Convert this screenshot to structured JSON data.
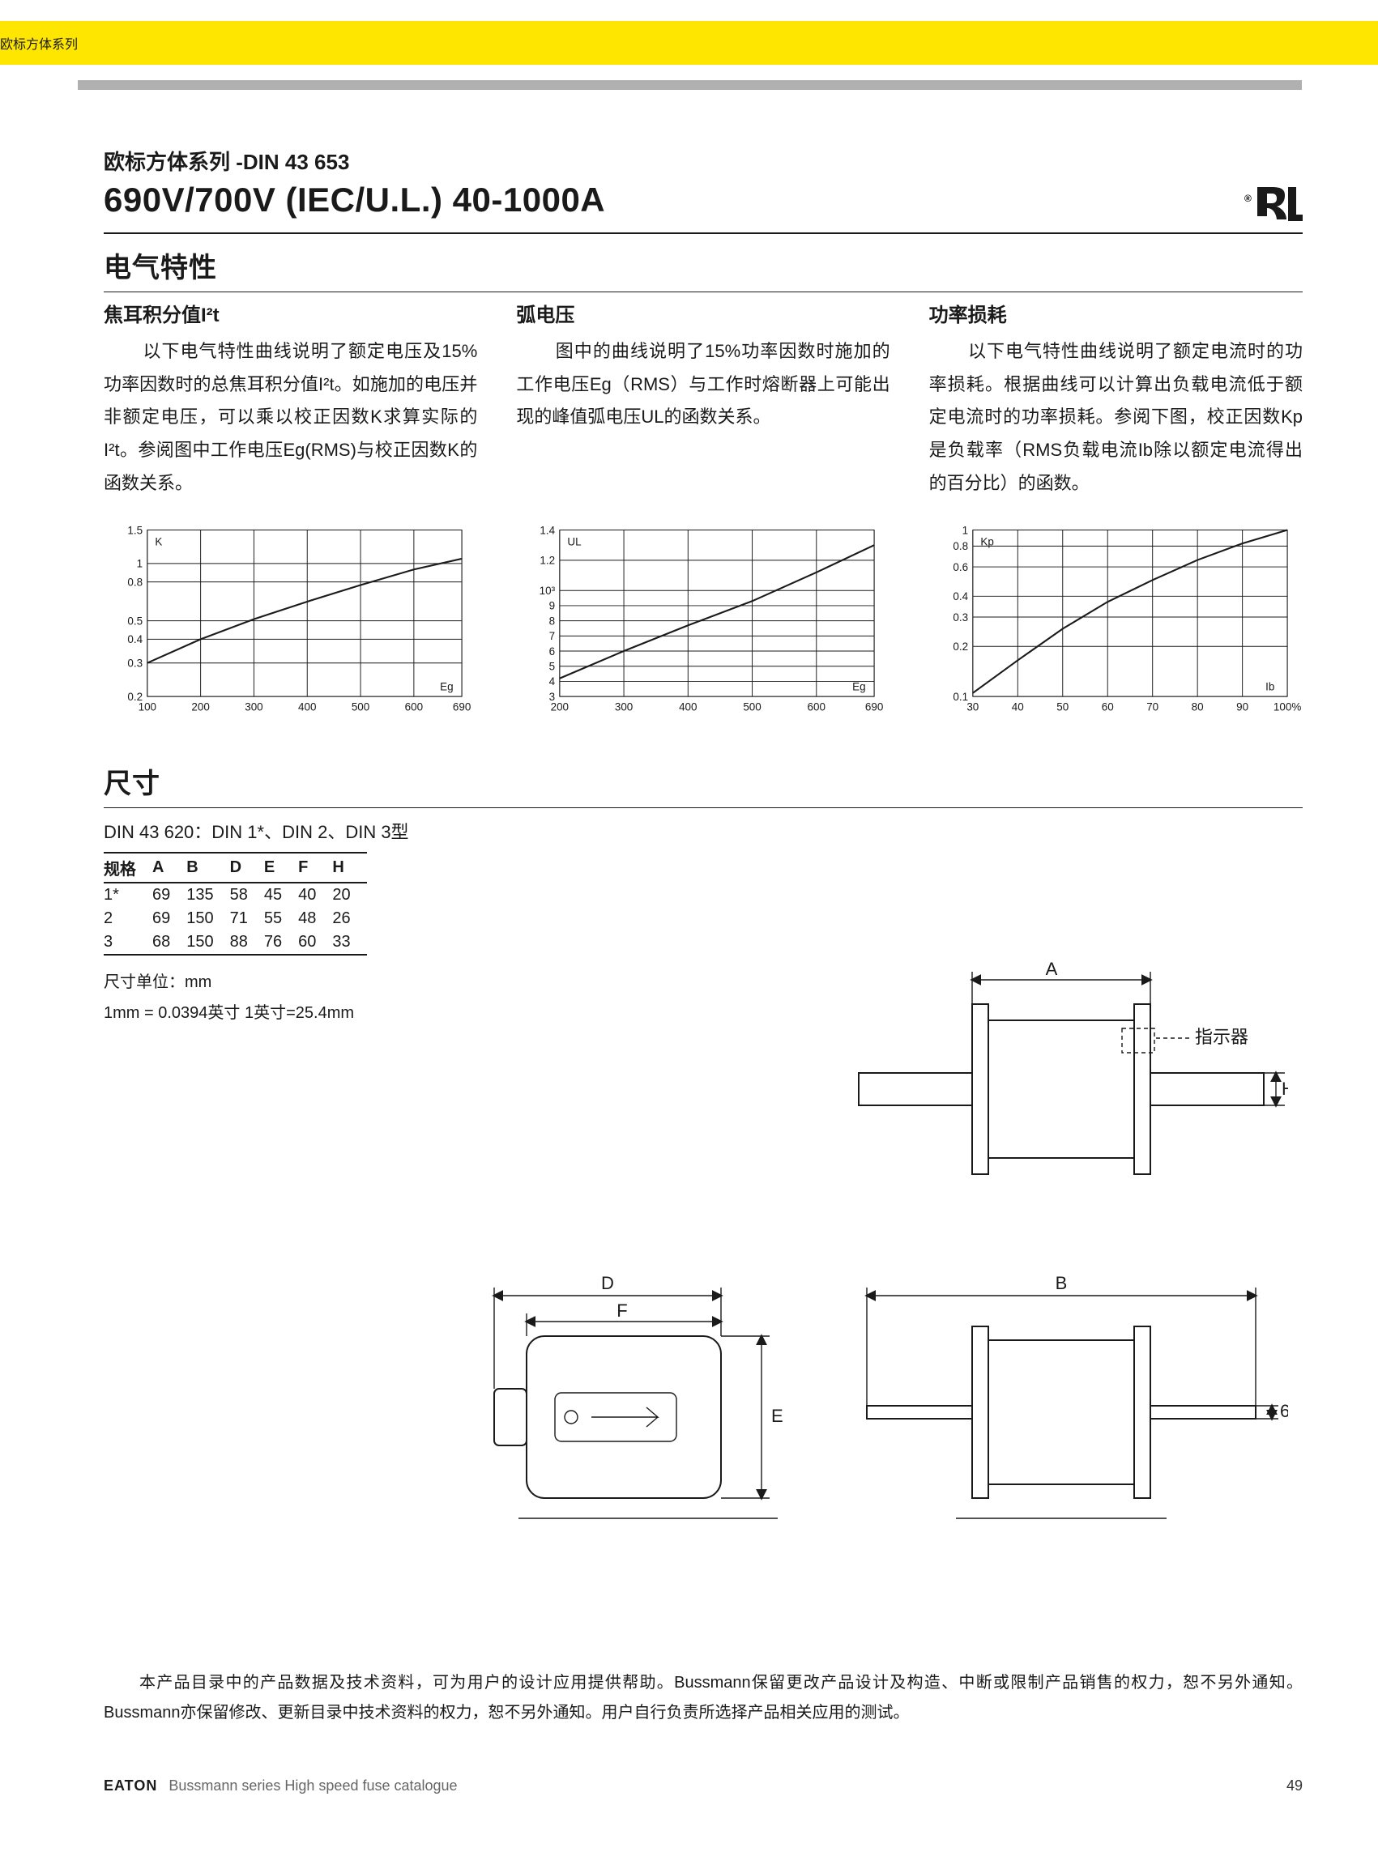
{
  "header": {
    "yellow_bar_label": "欧标方体系列"
  },
  "heading": {
    "subtitle": "欧标方体系列 -DIN 43 653",
    "title": "690V/700V (IEC/U.L.)   40-1000A"
  },
  "section_electrical_title": "电气特性",
  "cols": {
    "i2t": {
      "heading": "焦耳积分值I²t",
      "body": "以下电气特性曲线说明了额定电压及15%功率因数时的总焦耳积分值I²t。如施加的电压并非额定电压，可以乘以校正因数K求算实际的I²t。参阅图中工作电压Eg(RMS)与校正因数K的函数关系。"
    },
    "arc": {
      "heading": "弧电压",
      "body": "图中的曲线说明了15%功率因数时施加的工作电压Eg（RMS）与工作时熔断器上可能出现的峰值弧电压UL的函数关系。"
    },
    "power": {
      "heading": "功率损耗",
      "body": "以下电气特性曲线说明了额定电流时的功率损耗。根据曲线可以计算出负载电流低于额定电流时的功率损耗。参阅下图，校正因数Kp是负载率（RMS负载电流Ib除以额定电流得出的百分比）的函数。"
    }
  },
  "charts": {
    "common": {
      "grid_color": "#1a1a1a",
      "curve_color": "#1a1a1a",
      "background_color": "#ffffff",
      "tick_fontsize": 14
    },
    "k": {
      "type": "line",
      "yscale": "log",
      "xlim": [
        100,
        690
      ],
      "ylim": [
        0.2,
        1.5
      ],
      "xticks": [
        100,
        200,
        300,
        400,
        500,
        600,
        690
      ],
      "yticks": [
        0.2,
        0.3,
        0.4,
        0.5,
        0.8,
        1.0,
        1.5
      ],
      "ylabel_inside": "K",
      "xlabel_inside": "Eg",
      "curve": [
        {
          "x": 100,
          "y": 0.3
        },
        {
          "x": 200,
          "y": 0.4
        },
        {
          "x": 300,
          "y": 0.51
        },
        {
          "x": 400,
          "y": 0.63
        },
        {
          "x": 500,
          "y": 0.77
        },
        {
          "x": 600,
          "y": 0.93
        },
        {
          "x": 690,
          "y": 1.06
        }
      ]
    },
    "ul": {
      "type": "line",
      "yscale": "linear",
      "xlim": [
        200,
        690
      ],
      "ylim": [
        3,
        14
      ],
      "xticks": [
        200,
        300,
        400,
        500,
        600,
        690
      ],
      "yticks": [
        3,
        4,
        5,
        6,
        7,
        8,
        9,
        10,
        12,
        14
      ],
      "ytick_labels": [
        "3",
        "4",
        "5",
        "6",
        "7",
        "8",
        "9",
        "10³",
        "1.2",
        "1.4"
      ],
      "ylabel_inside": "UL",
      "xlabel_inside": "Eg",
      "curve": [
        {
          "x": 200,
          "y": 4.2
        },
        {
          "x": 300,
          "y": 6.0
        },
        {
          "x": 400,
          "y": 7.7
        },
        {
          "x": 500,
          "y": 9.3
        },
        {
          "x": 600,
          "y": 11.2
        },
        {
          "x": 690,
          "y": 13.0
        }
      ]
    },
    "kp": {
      "type": "line",
      "yscale": "log",
      "xlim": [
        30,
        100
      ],
      "ylim": [
        0.1,
        1.0
      ],
      "xticks": [
        30,
        40,
        50,
        60,
        70,
        80,
        90,
        100
      ],
      "xtick_labels": [
        "30",
        "40",
        "50",
        "60",
        "70",
        "80",
        "90",
        "100%"
      ],
      "yticks": [
        0.1,
        0.2,
        0.3,
        0.4,
        0.6,
        0.8,
        1.0
      ],
      "ylabel_inside": "Kp",
      "xlabel_inside": "Ib",
      "curve": [
        {
          "x": 30,
          "y": 0.105
        },
        {
          "x": 40,
          "y": 0.165
        },
        {
          "x": 50,
          "y": 0.255
        },
        {
          "x": 60,
          "y": 0.37
        },
        {
          "x": 70,
          "y": 0.5
        },
        {
          "x": 80,
          "y": 0.66
        },
        {
          "x": 90,
          "y": 0.83
        },
        {
          "x": 100,
          "y": 1.0
        }
      ]
    }
  },
  "dimensions": {
    "section_title": "尺寸",
    "caption": "DIN 43 620：DIN 1*、DIN 2、DIN 3型",
    "headers": [
      "规格",
      "A",
      "B",
      "D",
      "E",
      "F",
      "H"
    ],
    "rows": [
      [
        "1*",
        "69",
        "135",
        "58",
        "45",
        "40",
        "20"
      ],
      [
        "2",
        "69",
        "150",
        "71",
        "55",
        "48",
        "26"
      ],
      [
        "3",
        "68",
        "150",
        "88",
        "76",
        "60",
        "33"
      ]
    ],
    "unit_note_line1": "尺寸单位：mm",
    "unit_note_line2": "1mm = 0.0394英寸    1英寸=25.4mm",
    "labels": {
      "A": "A",
      "B": "B",
      "D": "D",
      "E": "E",
      "F": "F",
      "H": "H",
      "indicator": "指示器",
      "six": "6"
    }
  },
  "disclaimer": "本产品目录中的产品数据及技术资料，可为用户的设计应用提供帮助。Bussmann保留更改产品设计及构造、中断或限制产品销售的权力，恕不另外通知。Bussmann亦保留修改、更新目录中技术资料的权力，恕不另外通知。用户自行负责所选择产品相关应用的测试。",
  "footer": {
    "brand": "EATON",
    "desc": "Bussmann series High speed fuse catalogue",
    "page": "49"
  }
}
